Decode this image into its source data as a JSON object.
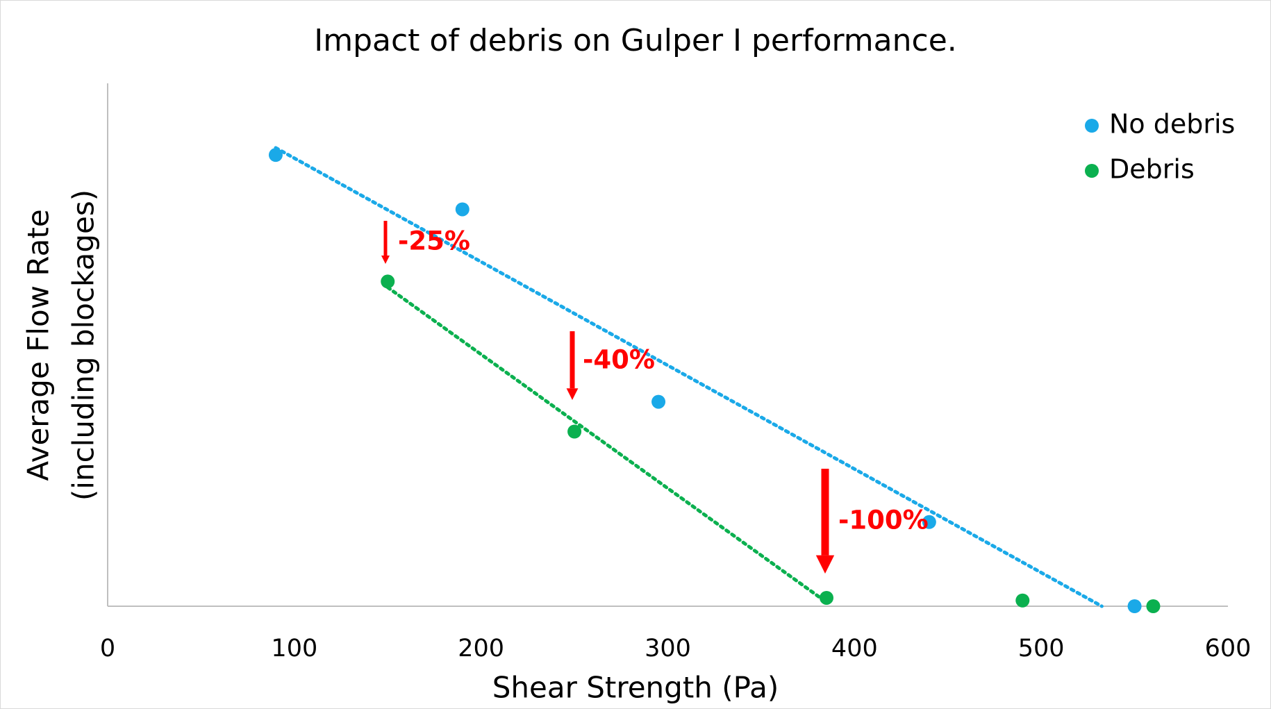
{
  "chart_data": {
    "type": "scatter",
    "title": "Impact of debris on Gulper I performance.",
    "xlabel": "Shear Strength (Pa)",
    "ylabel": [
      "Average Flow Rate",
      "(including blockages)"
    ],
    "xlim": [
      0,
      600
    ],
    "xticks": [
      0,
      100,
      200,
      300,
      400,
      500,
      600
    ],
    "ylim": [
      0,
      100
    ],
    "legend": "upper right",
    "series": [
      {
        "name": "No debris",
        "color": "#1aa9e8",
        "x": [
          90,
          190,
          295,
          440,
          550
        ],
        "values": [
          86.3,
          75.9,
          39.1,
          16.1,
          0
        ],
        "trendline_points": 5
      },
      {
        "name": "Debris",
        "color": "#0bb04f",
        "x": [
          150,
          250,
          385,
          490,
          560
        ],
        "values": [
          62.1,
          33.4,
          1.6,
          1.1,
          0
        ],
        "trendline_points": 3
      }
    ],
    "annotations": [
      "-25%",
      "-40%",
      "-100%"
    ]
  }
}
